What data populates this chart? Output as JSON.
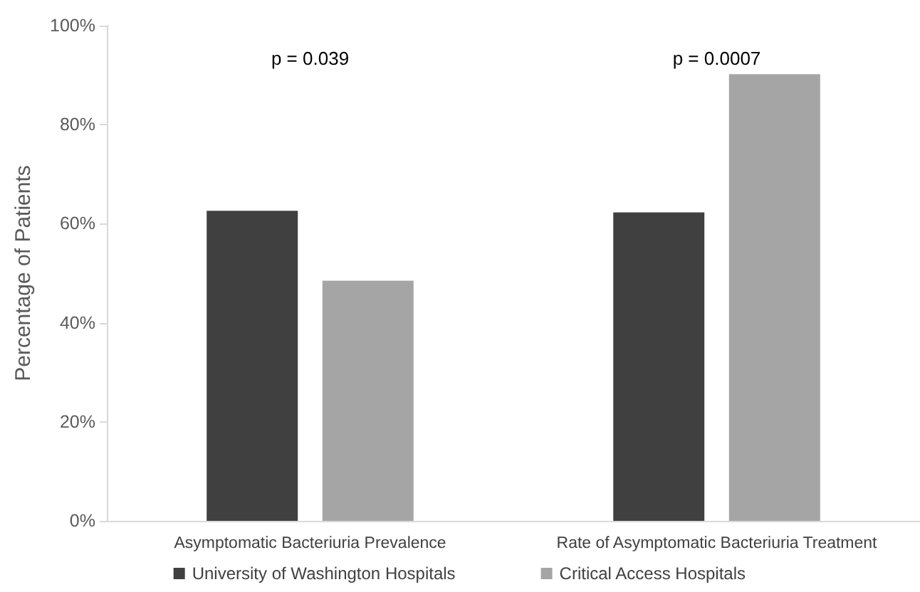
{
  "chart_data": {
    "type": "bar",
    "ylabel": "Percentage of Patients",
    "categories": [
      "Asymptomatic Bacteriuria Prevalence",
      "Rate of Asymptomatic Bacteriuria Treatment"
    ],
    "series": [
      {
        "name": "University of Washington Hospitals",
        "color": "#404040",
        "values": [
          62.6,
          62.3
        ]
      },
      {
        "name": "Critical Access Hospitals",
        "color": "#a5a5a5",
        "values": [
          48.5,
          90.2
        ]
      }
    ],
    "ylim": [
      0,
      100
    ],
    "yticks": [
      {
        "value": 0,
        "label": "0%"
      },
      {
        "value": 20,
        "label": "20%"
      },
      {
        "value": 40,
        "label": "40%"
      },
      {
        "value": 60,
        "label": "60%"
      },
      {
        "value": 80,
        "label": "80%"
      },
      {
        "value": 100,
        "label": "100%"
      }
    ],
    "grid": false,
    "legend": "bottom",
    "annotations": [
      "p = 0.039",
      "p = 0.0007"
    ]
  }
}
